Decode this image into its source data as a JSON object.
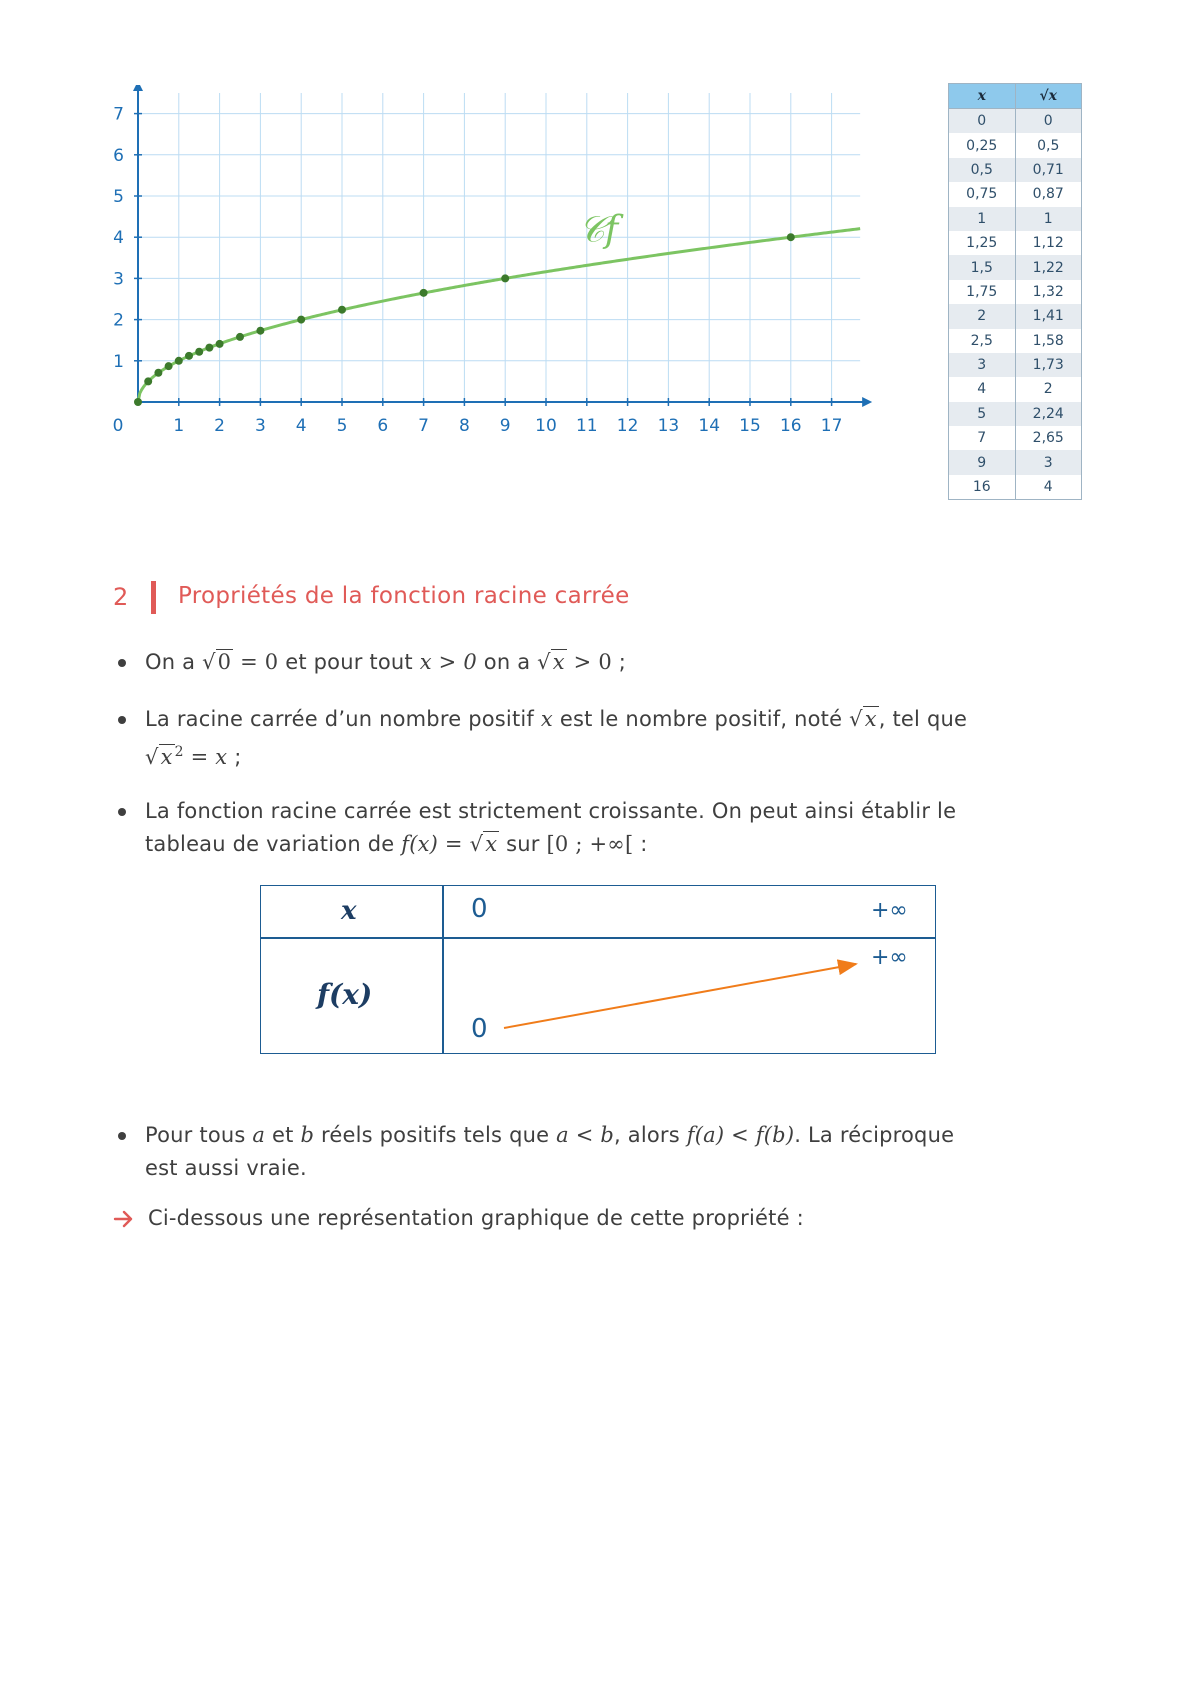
{
  "chart_data": {
    "type": "line",
    "x_ticks": [
      "0",
      "1",
      "2",
      "3",
      "4",
      "5",
      "6",
      "7",
      "8",
      "9",
      "10",
      "11",
      "12",
      "13",
      "14",
      "15",
      "16",
      "17"
    ],
    "y_ticks": [
      "1",
      "2",
      "3",
      "4",
      "5",
      "6",
      "7"
    ],
    "xlim": [
      0,
      17.7
    ],
    "ylim": [
      0,
      7.5
    ],
    "grid": true,
    "curve_label": "𝒞f",
    "series": [
      {
        "x": [
          0,
          0.25,
          0.5,
          0.75,
          1,
          1.25,
          1.5,
          1.75,
          2,
          2.5,
          3,
          4,
          5,
          7,
          9,
          16
        ],
        "y": [
          0,
          0.5,
          0.71,
          0.87,
          1,
          1.12,
          1.22,
          1.32,
          1.41,
          1.58,
          1.73,
          2,
          2.24,
          2.65,
          3,
          4
        ]
      }
    ],
    "colors": {
      "curve": "#7cc462",
      "points": "#3c7a2c",
      "axis": "#1e6fb5",
      "grid": "#bcdcf3"
    }
  },
  "value_table": {
    "headers": [
      "x",
      "√x"
    ],
    "rows": [
      [
        "0",
        "0"
      ],
      [
        "0,25",
        "0,5"
      ],
      [
        "0,5",
        "0,71"
      ],
      [
        "0,75",
        "0,87"
      ],
      [
        "1",
        "1"
      ],
      [
        "1,25",
        "1,12"
      ],
      [
        "1,5",
        "1,22"
      ],
      [
        "1,75",
        "1,32"
      ],
      [
        "2",
        "1,41"
      ],
      [
        "2,5",
        "1,58"
      ],
      [
        "3",
        "1,73"
      ],
      [
        "4",
        "2"
      ],
      [
        "5",
        "2,24"
      ],
      [
        "7",
        "2,65"
      ],
      [
        "9",
        "3"
      ],
      [
        "16",
        "4"
      ]
    ]
  },
  "section": {
    "number": "2",
    "title": "Propriétés de la fonction racine carrée"
  },
  "bullets": {
    "b1": {
      "t1": "On a ",
      "t2": " et pour tout ",
      "t3": " on a ",
      "t4": " ;",
      "zero": "0",
      "eq0": " = 0",
      "xgt0": "x > 0",
      "x": "x",
      "gt0": " > 0"
    },
    "b2": {
      "t1": "La racine carrée d’un nombre positif ",
      "x": "x",
      "t2": " est le nombre positif, noté ",
      "t3": ", tel que",
      "sq": "2",
      "eqx": " = x",
      "t4": " ;"
    },
    "b3": {
      "t1": "La fonction racine carrée est strictement croissante. On peut ainsi établir le",
      "t2": "tableau de variation de ",
      "fx": "f(x) = ",
      "x": "x",
      "t3": " sur ",
      "interval": "[0 ; +∞[",
      "t4": " :"
    },
    "b4": {
      "t1": "Pour tous ",
      "a": "a",
      "t2": " et ",
      "b": "b",
      "t3": " réels positifs tels que ",
      "alb": "a < b",
      "t4": ", alors ",
      "fafb": "f(a) < f(b)",
      "t5": ". La réciproque",
      "t6": "est aussi vraie."
    },
    "arrow_text": "Ci-dessous une représentation graphique de cette propriété :"
  },
  "variation_table": {
    "x_label": "x",
    "fx_label": "f(x)",
    "x_start": "0",
    "x_end": "+∞",
    "f_start": "0",
    "f_end": "+∞",
    "arrow_color": "#f07c1a"
  }
}
